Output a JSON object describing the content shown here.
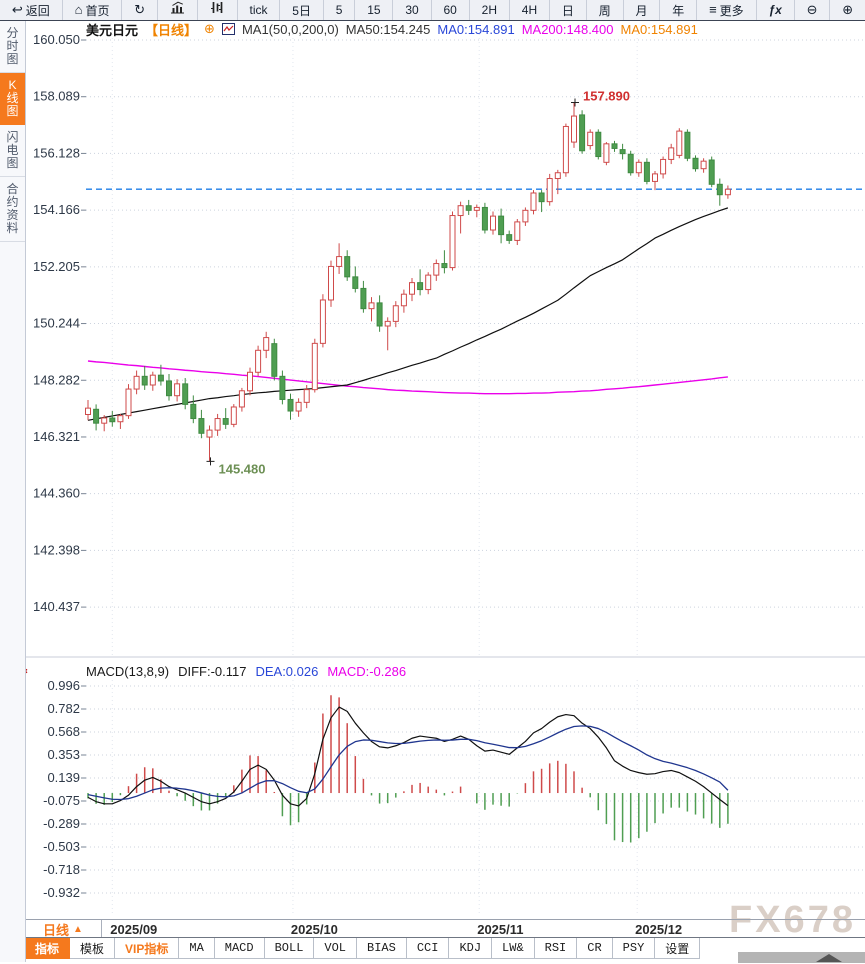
{
  "watermark": "FX678",
  "toolbar": {
    "items": [
      {
        "id": "back",
        "label": "返回",
        "icon": "back-arrow-icon",
        "glyph": "↩"
      },
      {
        "id": "home",
        "label": "首页",
        "icon": "home-icon",
        "glyph": "⌂"
      },
      {
        "id": "refresh",
        "icon": "refresh-icon",
        "glyph": "↻"
      },
      {
        "id": "chart-type-bar",
        "icon": "bar-chart-icon"
      },
      {
        "id": "chart-type-candle",
        "icon": "candles-icon"
      },
      {
        "id": "tick",
        "label": "tick"
      },
      {
        "id": "5d",
        "label": "5日"
      },
      {
        "id": "m5",
        "label": "5"
      },
      {
        "id": "m15",
        "label": "15"
      },
      {
        "id": "m30",
        "label": "30"
      },
      {
        "id": "m60",
        "label": "60"
      },
      {
        "id": "h2",
        "label": "2H"
      },
      {
        "id": "h4",
        "label": "4H"
      },
      {
        "id": "day",
        "label": "日"
      },
      {
        "id": "week",
        "label": "周"
      },
      {
        "id": "month",
        "label": "月"
      },
      {
        "id": "year",
        "label": "年"
      },
      {
        "id": "more",
        "label": "更多",
        "icon": "menu-icon",
        "glyph": "≡"
      },
      {
        "id": "fx",
        "label": "ƒx"
      },
      {
        "id": "zoom-out",
        "icon": "zoom-out-icon",
        "glyph": "⊖"
      },
      {
        "id": "zoom-in",
        "icon": "zoom-in-icon",
        "glyph": "⊕"
      }
    ]
  },
  "sidebar": {
    "items": [
      {
        "id": "time-chart",
        "label": "分时图",
        "active": false
      },
      {
        "id": "candle-chart",
        "label": "K线图",
        "active": true
      },
      {
        "id": "lightning-chart",
        "label": "闪电图",
        "active": false
      },
      {
        "id": "contract-info",
        "label": "合约资料",
        "active": false
      }
    ]
  },
  "chart_header": {
    "symbol": "美元日元",
    "period_tag": "【日线】",
    "plus_icon": "⊕",
    "ma_params": "MA1(50,0,200,0)",
    "ma_values": [
      {
        "text": "MA50:154.245",
        "color": "#333333"
      },
      {
        "text": "MA0:154.891",
        "color": "#2947d8"
      },
      {
        "text": "MA200:148.400",
        "color": "#ea00ea"
      },
      {
        "text": "MA0:154.891",
        "color": "#f08300"
      }
    ]
  },
  "macd_header": {
    "settings_icon": "⚙",
    "title": "MACD(13,8,9)",
    "diff_label": "DIFF:-0.117",
    "dea_label": "DEA:0.026",
    "macd_label": "MACD:-0.286"
  },
  "xaxis": {
    "period_label": "日线",
    "period_arrow": "▲"
  },
  "bottom_tabs": [
    {
      "id": "indicators",
      "label": "指标",
      "active": true
    },
    {
      "id": "templates",
      "label": "模板"
    },
    {
      "id": "vip-indicators",
      "label": "VIP指标",
      "vip": true
    },
    {
      "id": "ma",
      "label": "MA"
    },
    {
      "id": "macd",
      "label": "MACD"
    },
    {
      "id": "boll",
      "label": "BOLL"
    },
    {
      "id": "vol",
      "label": "VOL"
    },
    {
      "id": "bias",
      "label": "BIAS"
    },
    {
      "id": "cci",
      "label": "CCI"
    },
    {
      "id": "kdj",
      "label": "KDJ"
    },
    {
      "id": "lwr",
      "label": "LW&"
    },
    {
      "id": "rsi",
      "label": "RSI"
    },
    {
      "id": "cr",
      "label": "CR"
    },
    {
      "id": "psy",
      "label": "PSY"
    },
    {
      "id": "settings",
      "label": "设置"
    }
  ],
  "colors": {
    "up": "#cf4a4a",
    "down": "#4f9e52",
    "down_stroke": "#3f8a42",
    "ma50": "#101010",
    "ma200": "#ea00ea",
    "dea": "#20368f",
    "current_price_line": "#1f7fe8",
    "high_label": "#d03030",
    "low_label": "#6d9055",
    "grid": "#ccd3de",
    "vgrid": "#e2e7ef",
    "axis_text": "#2e3948"
  },
  "chart_data": {
    "type": "candlestick",
    "title": "美元日元 日线 (USD/JPY daily with MA50/MA200 and MACD)",
    "current_price": 154.891,
    "price_axis": {
      "ticks": [
        160.05,
        158.089,
        156.128,
        154.166,
        152.205,
        150.244,
        148.282,
        146.321,
        144.36,
        142.398,
        140.437
      ]
    },
    "months": [
      {
        "label": "2025/09",
        "index": 3
      },
      {
        "label": "2025/10",
        "index": 25.3
      },
      {
        "label": "2025/11",
        "index": 48.3
      },
      {
        "label": "2025/12",
        "index": 67.8
      }
    ],
    "high_annotation": {
      "text": "157.890",
      "value": 157.89,
      "index": 60
    },
    "low_annotation": {
      "text": "145.480",
      "value": 145.48,
      "index": 15
    },
    "candles": [
      [
        147.1,
        147.6,
        146.9,
        147.32
      ],
      [
        147.28,
        147.45,
        146.55,
        146.8
      ],
      [
        146.8,
        147.08,
        146.52,
        146.98
      ],
      [
        146.98,
        147.22,
        146.68,
        146.85
      ],
      [
        146.85,
        147.12,
        146.6,
        147.06
      ],
      [
        147.06,
        148.15,
        146.95,
        147.98
      ],
      [
        147.98,
        148.62,
        147.8,
        148.42
      ],
      [
        148.42,
        148.78,
        147.95,
        148.12
      ],
      [
        148.12,
        148.58,
        147.92,
        148.46
      ],
      [
        148.46,
        148.82,
        148.1,
        148.26
      ],
      [
        148.26,
        148.5,
        147.58,
        147.75
      ],
      [
        147.75,
        148.32,
        147.55,
        148.16
      ],
      [
        148.16,
        148.36,
        147.28,
        147.45
      ],
      [
        147.45,
        147.76,
        146.8,
        146.96
      ],
      [
        146.96,
        147.26,
        146.28,
        146.45
      ],
      [
        146.32,
        146.72,
        145.48,
        146.56
      ],
      [
        146.56,
        147.12,
        146.36,
        146.96
      ],
      [
        146.96,
        147.32,
        146.6,
        146.76
      ],
      [
        146.76,
        147.46,
        146.66,
        147.36
      ],
      [
        147.36,
        148.02,
        147.2,
        147.92
      ],
      [
        147.92,
        148.72,
        147.76,
        148.56
      ],
      [
        148.56,
        149.48,
        148.42,
        149.32
      ],
      [
        149.32,
        149.96,
        149.05,
        149.76
      ],
      [
        149.55,
        149.72,
        148.28,
        148.42
      ],
      [
        148.42,
        148.62,
        147.45,
        147.62
      ],
      [
        147.62,
        147.82,
        146.92,
        147.22
      ],
      [
        147.22,
        147.66,
        147.02,
        147.52
      ],
      [
        147.52,
        148.12,
        147.32,
        147.96
      ],
      [
        147.96,
        149.72,
        147.86,
        149.56
      ],
      [
        149.56,
        151.26,
        149.42,
        151.06
      ],
      [
        151.06,
        152.42,
        150.82,
        152.22
      ],
      [
        152.22,
        153.02,
        151.96,
        152.56
      ],
      [
        152.56,
        152.78,
        151.72,
        151.86
      ],
      [
        151.86,
        152.22,
        151.32,
        151.46
      ],
      [
        151.46,
        151.72,
        150.62,
        150.76
      ],
      [
        150.76,
        151.16,
        150.32,
        150.96
      ],
      [
        150.96,
        151.22,
        149.96,
        150.16
      ],
      [
        150.16,
        150.46,
        149.32,
        150.32
      ],
      [
        150.32,
        151.02,
        150.12,
        150.86
      ],
      [
        150.86,
        151.42,
        150.62,
        151.26
      ],
      [
        151.26,
        151.82,
        151.02,
        151.66
      ],
      [
        151.66,
        152.12,
        151.22,
        151.42
      ],
      [
        151.42,
        152.02,
        151.26,
        151.92
      ],
      [
        151.92,
        152.46,
        151.72,
        152.32
      ],
      [
        152.32,
        152.78,
        151.98,
        152.18
      ],
      [
        152.18,
        154.12,
        152.08,
        153.98
      ],
      [
        153.98,
        154.46,
        153.36,
        154.32
      ],
      [
        154.32,
        154.52,
        154.0,
        154.16
      ],
      [
        154.16,
        154.36,
        153.92,
        154.26
      ],
      [
        154.26,
        154.42,
        153.36,
        153.48
      ],
      [
        153.48,
        154.12,
        153.32,
        153.96
      ],
      [
        153.96,
        154.22,
        153.02,
        153.32
      ],
      [
        153.32,
        153.46,
        153.0,
        153.12
      ],
      [
        153.12,
        153.86,
        152.96,
        153.76
      ],
      [
        153.76,
        154.26,
        153.62,
        154.16
      ],
      [
        154.16,
        154.86,
        154.02,
        154.76
      ],
      [
        154.76,
        154.86,
        154.1,
        154.46
      ],
      [
        154.46,
        155.42,
        154.32,
        155.26
      ],
      [
        155.26,
        155.56,
        154.72,
        155.46
      ],
      [
        155.46,
        157.16,
        155.32,
        157.06
      ],
      [
        156.52,
        157.89,
        156.32,
        157.42
      ],
      [
        157.46,
        157.62,
        156.12,
        156.22
      ],
      [
        156.4,
        156.96,
        156.26,
        156.86
      ],
      [
        156.86,
        156.96,
        155.92,
        156.02
      ],
      [
        155.82,
        156.52,
        155.72,
        156.46
      ],
      [
        156.46,
        156.56,
        156.18,
        156.3
      ],
      [
        156.26,
        156.46,
        155.92,
        156.12
      ],
      [
        156.1,
        156.22,
        155.36,
        155.46
      ],
      [
        155.46,
        155.92,
        155.32,
        155.82
      ],
      [
        155.82,
        155.96,
        155.06,
        155.16
      ],
      [
        155.16,
        155.52,
        154.86,
        155.42
      ],
      [
        155.42,
        156.02,
        155.26,
        155.92
      ],
      [
        155.92,
        156.46,
        155.76,
        156.32
      ],
      [
        156.06,
        157.0,
        155.96,
        156.9
      ],
      [
        156.86,
        156.96,
        155.86,
        155.96
      ],
      [
        155.96,
        156.06,
        155.5,
        155.6
      ],
      [
        155.6,
        155.96,
        155.46,
        155.86
      ],
      [
        155.9,
        156.02,
        154.96,
        155.06
      ],
      [
        155.06,
        155.26,
        154.32,
        154.7
      ],
      [
        154.7,
        155.02,
        154.56,
        154.89
      ]
    ],
    "ma50": [
      146.9,
      146.95,
      147.0,
      147.05,
      147.1,
      147.15,
      147.2,
      147.25,
      147.3,
      147.35,
      147.4,
      147.45,
      147.5,
      147.55,
      147.6,
      147.65,
      147.68,
      147.72,
      147.75,
      147.79,
      147.82,
      147.85,
      147.87,
      147.9,
      147.92,
      147.94,
      147.96,
      147.98,
      148.0,
      148.03,
      148.06,
      148.09,
      148.12,
      148.2,
      148.28,
      148.37,
      148.45,
      148.54,
      148.62,
      148.71,
      148.8,
      148.88,
      148.97,
      149.05,
      149.18,
      149.3,
      149.43,
      149.55,
      149.68,
      149.8,
      149.93,
      150.05,
      150.19,
      150.33,
      150.46,
      150.6,
      150.75,
      150.9,
      151.05,
      151.26,
      151.48,
      151.69,
      151.9,
      152.04,
      152.18,
      152.31,
      152.45,
      152.64,
      152.83,
      153.01,
      153.2,
      153.33,
      153.47,
      153.6,
      153.72,
      153.84,
      153.95,
      154.05,
      154.15,
      154.245
    ],
    "ma200": [
      148.95,
      148.92,
      148.9,
      148.87,
      148.84,
      148.81,
      148.79,
      148.76,
      148.73,
      148.71,
      148.68,
      148.66,
      148.63,
      148.61,
      148.58,
      148.56,
      148.54,
      148.51,
      148.49,
      148.46,
      148.44,
      148.41,
      148.38,
      148.35,
      148.32,
      148.29,
      148.26,
      148.23,
      148.2,
      148.17,
      148.14,
      148.11,
      148.08,
      148.06,
      148.03,
      148.01,
      147.99,
      147.96,
      147.94,
      147.93,
      147.91,
      147.9,
      147.89,
      147.87,
      147.86,
      147.85,
      147.84,
      147.84,
      147.83,
      147.82,
      147.82,
      147.82,
      147.82,
      147.83,
      147.83,
      147.84,
      147.84,
      147.85,
      147.87,
      147.88,
      147.89,
      147.91,
      147.92,
      147.94,
      147.97,
      147.99,
      148.01,
      148.04,
      148.06,
      148.09,
      148.12,
      148.15,
      148.18,
      148.21,
      148.24,
      148.27,
      148.3,
      148.33,
      148.37,
      148.4
    ],
    "macd": {
      "params": "(13,8,9)",
      "diff_last": -0.117,
      "dea_last": 0.026,
      "macd_last": -0.286,
      "axis_ticks": [
        0.996,
        0.782,
        0.568,
        0.353,
        0.139,
        -0.075,
        -0.289,
        -0.503,
        -0.718,
        -0.932
      ],
      "diff": [
        -0.04,
        -0.08,
        -0.1,
        -0.1,
        -0.07,
        -0.02,
        0.06,
        0.12,
        0.145,
        0.11,
        0.06,
        0.03,
        0.0,
        -0.04,
        -0.08,
        -0.1,
        -0.08,
        -0.05,
        0.01,
        0.11,
        0.22,
        0.26,
        0.22,
        0.12,
        -0.02,
        -0.1,
        -0.12,
        -0.05,
        0.18,
        0.5,
        0.7,
        0.8,
        0.76,
        0.65,
        0.56,
        0.48,
        0.43,
        0.42,
        0.44,
        0.47,
        0.51,
        0.53,
        0.52,
        0.51,
        0.48,
        0.5,
        0.53,
        0.5,
        0.44,
        0.39,
        0.4,
        0.38,
        0.36,
        0.42,
        0.48,
        0.56,
        0.6,
        0.66,
        0.71,
        0.73,
        0.72,
        0.65,
        0.6,
        0.52,
        0.42,
        0.3,
        0.25,
        0.21,
        0.19,
        0.175,
        0.18,
        0.2,
        0.21,
        0.19,
        0.15,
        0.11,
        0.06,
        0.0,
        -0.06,
        -0.117
      ],
      "dea": [
        -0.015,
        -0.03,
        -0.045,
        -0.058,
        -0.06,
        -0.052,
        -0.03,
        0.0,
        0.03,
        0.046,
        0.049,
        0.045,
        0.036,
        0.021,
        0.001,
        -0.019,
        -0.031,
        -0.035,
        -0.026,
        0.001,
        0.045,
        0.088,
        0.114,
        0.115,
        0.088,
        0.05,
        0.016,
        0.003,
        0.038,
        0.13,
        0.245,
        0.355,
        0.435,
        0.478,
        0.494,
        0.491,
        0.479,
        0.467,
        0.461,
        0.462,
        0.472,
        0.483,
        0.49,
        0.494,
        0.491,
        0.493,
        0.5,
        0.5,
        0.488,
        0.468,
        0.454,
        0.439,
        0.423,
        0.422,
        0.434,
        0.459,
        0.487,
        0.522,
        0.56,
        0.594,
        0.619,
        0.625,
        0.62,
        0.6,
        0.564,
        0.52,
        0.478,
        0.44,
        0.4,
        0.355,
        0.32,
        0.295,
        0.278,
        0.258,
        0.236,
        0.21,
        0.178,
        0.142,
        0.102,
        0.026
      ]
    }
  }
}
